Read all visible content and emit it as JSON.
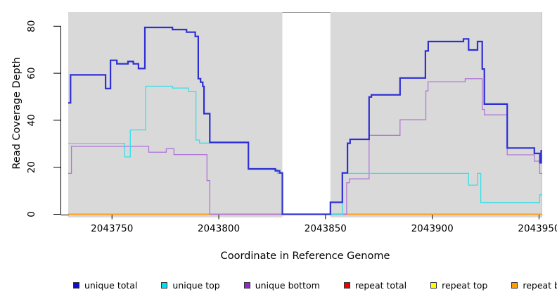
{
  "chart_data": {
    "type": "line",
    "subtype": "step-coverage-plot",
    "title": "",
    "xlabel": "Coordinate in Reference Genome",
    "ylabel": "Read Coverage Depth",
    "xlim": [
      2043729.5,
      2043951.5
    ],
    "ylim": [
      0,
      80
    ],
    "x_ticks": [
      2043750,
      2043800,
      2043850,
      2043900,
      2043950
    ],
    "x_tick_labels": [
      "2043750",
      "2043800",
      "2043850",
      "2043900",
      "2043950"
    ],
    "y_ticks": [
      0,
      20,
      40,
      60,
      80
    ],
    "y_tick_labels": [
      "0",
      "20",
      "40",
      "60",
      "80"
    ],
    "grid": false,
    "plot_bg": "#d9d9d9",
    "figure_bg": "#ffffff",
    "gap_region": {
      "x0": 2043829.8,
      "x1": 2043852.3,
      "color": "#ffffff"
    },
    "legend_position": "bottom",
    "series": [
      {
        "name": "unique total",
        "color": "#2e2ed6",
        "legend_color": "#0d0dd0",
        "width": 2.2,
        "steps": [
          [
            2043729.5,
            47.4
          ],
          [
            2043730.6,
            59.3
          ],
          [
            2043747.0,
            53.5
          ],
          [
            2043749.3,
            65.5
          ],
          [
            2043752.3,
            64.0
          ],
          [
            2043757.5,
            65.0
          ],
          [
            2043760.0,
            64.0
          ],
          [
            2043762.4,
            62.0
          ],
          [
            2043765.4,
            79.5
          ],
          [
            2043778.3,
            78.6
          ],
          [
            2043784.9,
            77.5
          ],
          [
            2043789.0,
            75.7
          ],
          [
            2043790.4,
            57.7
          ],
          [
            2043791.5,
            56.2
          ],
          [
            2043792.5,
            54.4
          ],
          [
            2043793.1,
            42.8
          ],
          [
            2043795.8,
            30.6
          ],
          [
            2043813.9,
            19.3
          ],
          [
            2043826.5,
            18.5
          ],
          [
            2043828.5,
            17.6
          ],
          [
            2043829.8,
            0
          ],
          [
            2043852.3,
            5.1
          ],
          [
            2043857.9,
            17.6
          ],
          [
            2043860.3,
            30.2
          ],
          [
            2043861.5,
            31.9
          ],
          [
            2043870.4,
            49.9
          ],
          [
            2043871.5,
            50.8
          ],
          [
            2043884.9,
            58.0
          ],
          [
            2043896.8,
            69.5
          ],
          [
            2043898.1,
            73.5
          ],
          [
            2043914.6,
            74.6
          ],
          [
            2043917.0,
            69.9
          ],
          [
            2043921.2,
            73.5
          ],
          [
            2043923.4,
            61.8
          ],
          [
            2043924.4,
            46.9
          ],
          [
            2043935.1,
            28.2
          ],
          [
            2043947.8,
            25.9
          ],
          [
            2043950.4,
            21.9
          ],
          [
            2043951.0,
            27.0
          ]
        ]
      },
      {
        "name": "unique top",
        "color": "#35dfe8",
        "legend_color": "#00e0ee",
        "width": 1.3,
        "steps": [
          [
            2043729.5,
            30.2
          ],
          [
            2043755.9,
            24.4
          ],
          [
            2043758.6,
            35.9
          ],
          [
            2043765.8,
            54.5
          ],
          [
            2043778.3,
            53.7
          ],
          [
            2043785.8,
            52.2
          ],
          [
            2043789.3,
            31.6
          ],
          [
            2043791.0,
            30.3
          ],
          [
            2043813.9,
            19.1
          ],
          [
            2043827.5,
            17.4
          ],
          [
            2043829.8,
            0
          ],
          [
            2043857.9,
            17.4
          ],
          [
            2043917.0,
            12.4
          ],
          [
            2043921.2,
            17.4
          ],
          [
            2043922.7,
            5.0
          ],
          [
            2043950.3,
            8.3
          ]
        ]
      },
      {
        "name": "unique bottom",
        "color": "#b176d9",
        "legend_color": "#9326d1",
        "width": 1.3,
        "steps": [
          [
            2043729.5,
            17.4
          ],
          [
            2043731.0,
            28.9
          ],
          [
            2043767.2,
            26.4
          ],
          [
            2043775.4,
            27.9
          ],
          [
            2043779.0,
            25.4
          ],
          [
            2043794.5,
            14.3
          ],
          [
            2043795.8,
            0
          ],
          [
            2043859.9,
            13.4
          ],
          [
            2043861.2,
            15.1
          ],
          [
            2043870.4,
            33.6
          ],
          [
            2043884.9,
            40.2
          ],
          [
            2043897.0,
            52.5
          ],
          [
            2043898.0,
            56.4
          ],
          [
            2043915.4,
            57.7
          ],
          [
            2043923.4,
            44.6
          ],
          [
            2043924.4,
            42.3
          ],
          [
            2043935.1,
            25.3
          ],
          [
            2043947.8,
            22.6
          ],
          [
            2043950.3,
            17.4
          ]
        ]
      },
      {
        "name": "repeat total",
        "color": "#e01010",
        "legend_color": "#ee0000",
        "width": 1.3,
        "steps": [
          [
            2043729.5,
            0
          ]
        ]
      },
      {
        "name": "repeat top",
        "color": "#ffff00",
        "legend_color": "#ffff00",
        "width": 1.3,
        "steps": [
          [
            2043729.5,
            0
          ]
        ]
      },
      {
        "name": "repeat bottom",
        "color": "#ff9d1c",
        "legend_color": "#ff9d00",
        "width": 2.0,
        "steps": [
          [
            2043729.5,
            0
          ]
        ]
      }
    ],
    "draw_order": [
      3,
      4,
      5,
      2,
      1,
      0
    ],
    "zero_overlap_segments": {
      "comment": "unique-bottom line lying on the zero baseline renders pink over the orange line",
      "color": "#cc66bb",
      "ranges": [
        [
          2043795.8,
          2043829.8
        ],
        [
          2043852.3,
          2043859.9
        ]
      ]
    }
  },
  "legend": {
    "items": [
      {
        "label": "unique total",
        "color": "#0d0dd0"
      },
      {
        "label": "unique top",
        "color": "#00e0ee"
      },
      {
        "label": "unique bottom",
        "color": "#9326d1"
      },
      {
        "label": "repeat total",
        "color": "#ee0000"
      },
      {
        "label": "repeat top",
        "color": "#ffff00"
      },
      {
        "label": "repeat bottom",
        "color": "#ff9d00"
      }
    ]
  }
}
